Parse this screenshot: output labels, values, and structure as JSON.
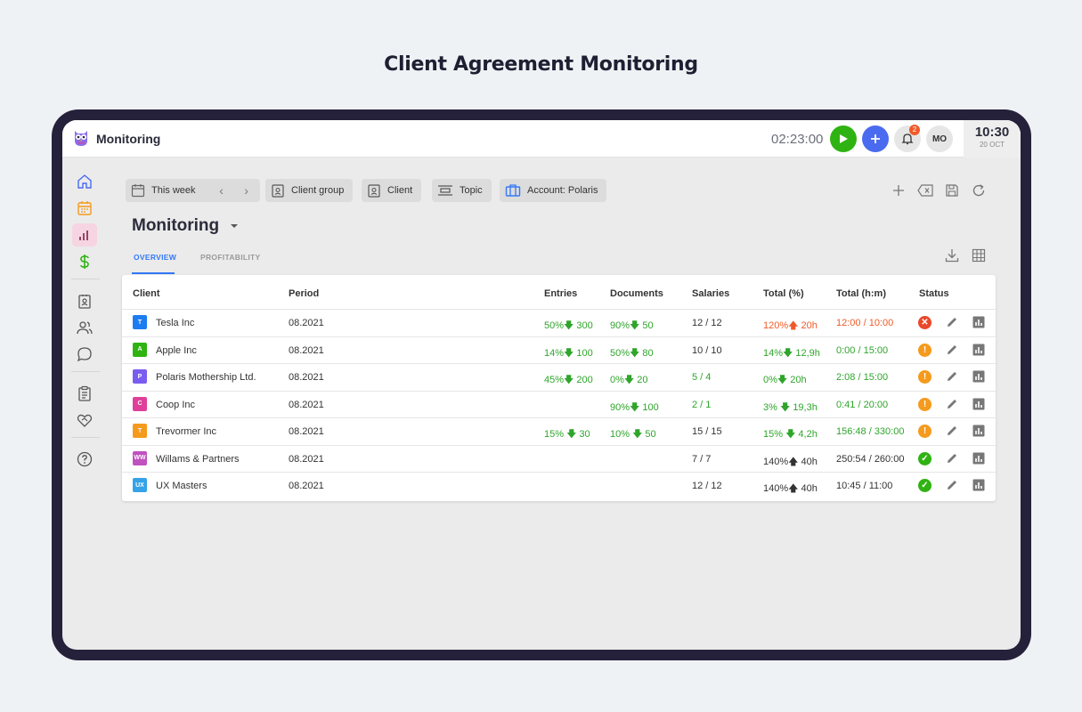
{
  "headline": "Client Agreement Monitoring",
  "topbar": {
    "app_title": "Monitoring",
    "timer": "02:23:00",
    "notification_count": "2",
    "avatar_initials": "MO",
    "clock_time": "10:30",
    "clock_date": "20 OCT"
  },
  "sidebar": {
    "items": [
      "home-icon",
      "calendar-icon",
      "bar-chart-icon",
      "dollar-icon",
      "contact-card-icon",
      "users-icon",
      "chat-icon",
      "clipboard-icon",
      "heart-handshake-icon",
      "help-icon"
    ],
    "active": "bar-chart-icon"
  },
  "filters": {
    "period": "This week",
    "client_group": "Client group",
    "client": "Client",
    "topic": "Topic",
    "account": "Account: Polaris"
  },
  "page": {
    "title": "Monitoring",
    "tabs": [
      {
        "label": "OVERVIEW",
        "active": true
      },
      {
        "label": "PROFITABILITY",
        "active": false
      }
    ]
  },
  "table": {
    "columns": [
      "Client",
      "Period",
      "Entries",
      "Documents",
      "Salaries",
      "Total (%)",
      "Total (h:m)",
      "Status"
    ],
    "rows": [
      {
        "initial": "T",
        "logo_color": "#1e7cf2",
        "client": "Tesla Inc",
        "period": "08.2021",
        "entries": "50%🡇 300",
        "documents": "90%🡇 50",
        "salaries": "12 / 12",
        "total_pct": "120%🡅 20h",
        "total_hm": "12:00 / 10:00",
        "status": "error",
        "salaries_color": "d",
        "pct_color": "r",
        "hm_color": "r"
      },
      {
        "initial": "A",
        "logo_color": "#2fb312",
        "client": "Apple Inc",
        "period": "08.2021",
        "entries": "14%🡇 100",
        "documents": "50%🡇 80",
        "salaries": "10 / 10",
        "total_pct": "14%🡇 12,9h",
        "total_hm": "0:00 / 15:00",
        "status": "warning",
        "salaries_color": "d",
        "pct_color": "g",
        "hm_color": "g"
      },
      {
        "initial": "P",
        "logo_color": "#7a5cf0",
        "client": "Polaris Mothership Ltd.",
        "period": "08.2021",
        "entries": "45%🡇 200",
        "documents": "0%🡇 20",
        "salaries": "5 / 4",
        "total_pct": "0%🡇 20h",
        "total_hm": "2:08 / 15:00",
        "status": "warning",
        "salaries_color": "g",
        "pct_color": "g",
        "hm_color": "g"
      },
      {
        "initial": "C",
        "logo_color": "#e0409a",
        "client": "Coop Inc",
        "period": "08.2021",
        "entries": "",
        "documents": "90%🡇 100",
        "salaries": "2 / 1",
        "total_pct": "3% 🡇 19,3h",
        "total_hm": "0:41 / 20:00",
        "status": "warning",
        "salaries_color": "g",
        "pct_color": "g",
        "hm_color": "g"
      },
      {
        "initial": "T",
        "logo_color": "#f59a1c",
        "client": "Trevormer Inc",
        "period": "08.2021",
        "entries": "15% 🡇 30",
        "documents": "10% 🡇 50",
        "salaries": "15 / 15",
        "total_pct": "15% 🡇  4,2h",
        "total_hm": "156:48 / 330:00",
        "status": "warning",
        "salaries_color": "d",
        "pct_color": "g",
        "hm_color": "g"
      },
      {
        "initial": "WW",
        "logo_color": "#c052c0",
        "client": "Willams & Partners",
        "period": "08.2021",
        "entries": "",
        "documents": "",
        "salaries": "7 / 7",
        "total_pct": "140%🡅 40h",
        "total_hm": "250:54 / 260:00",
        "status": "ok",
        "salaries_color": "d",
        "pct_color": "d",
        "hm_color": "d"
      },
      {
        "initial": "UX",
        "logo_color": "#35a3e8",
        "client": "UX Masters",
        "period": "08.2021",
        "entries": "",
        "documents": "",
        "salaries": "12 / 12",
        "total_pct": "140%🡅 40h",
        "total_hm": "10:45 / 11:00",
        "status": "ok",
        "salaries_color": "d",
        "pct_color": "d",
        "hm_color": "d"
      }
    ]
  },
  "colors": {
    "accent": "#3478f6",
    "green": "#2fa52b",
    "red": "#f05a28",
    "status_error": "#e8492a",
    "status_warning": "#f59a1c",
    "status_ok": "#2fb312"
  }
}
